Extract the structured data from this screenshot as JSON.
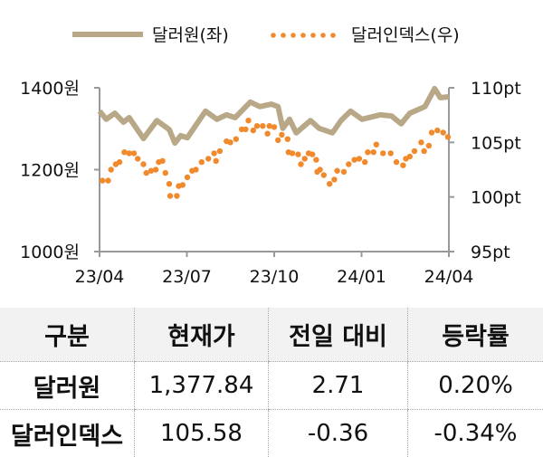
{
  "chart_data": {
    "type": "line",
    "legend_position": "top",
    "grid": false,
    "x_ticks": [
      "23/04",
      "23/07",
      "23/10",
      "24/01",
      "24/04"
    ],
    "x_range": [
      "2023-04-03",
      "2024-04-03"
    ],
    "y_left": {
      "ticks": [
        "1400원",
        "1200원",
        "1000원"
      ],
      "range": [
        1000,
        1400
      ]
    },
    "y_right": {
      "ticks": [
        "110pt",
        "105pt",
        "100pt",
        "95pt"
      ],
      "range": [
        95,
        110
      ]
    },
    "colors": {
      "krw": "#b8a888",
      "dxy": "#f08a2c"
    },
    "series": [
      {
        "name": "달러원(좌)",
        "axis": "left",
        "style": "line",
        "x": [
          "2023-04-03",
          "2023-04-10",
          "2023-04-19",
          "2023-04-28",
          "2023-05-04",
          "2023-05-19",
          "2023-06-02",
          "2023-06-15",
          "2023-06-21",
          "2023-06-27",
          "2023-07-04",
          "2023-07-23",
          "2023-08-04",
          "2023-08-14",
          "2023-08-23",
          "2023-09-08",
          "2023-09-18",
          "2023-09-30",
          "2023-10-07",
          "2023-10-12",
          "2023-10-19",
          "2023-10-26",
          "2023-11-10",
          "2023-11-19",
          "2023-12-03",
          "2023-12-12",
          "2023-12-22",
          "2024-01-03",
          "2024-01-22",
          "2024-02-03",
          "2024-02-13",
          "2024-02-22",
          "2024-03-09",
          "2024-03-19",
          "2024-03-25",
          "2024-04-03"
        ],
        "y": [
          1343,
          1323,
          1338,
          1316,
          1327,
          1276,
          1320,
          1298,
          1265,
          1283,
          1278,
          1343,
          1323,
          1334,
          1327,
          1365,
          1354,
          1360,
          1354,
          1301,
          1323,
          1290,
          1320,
          1301,
          1290,
          1320,
          1343,
          1323,
          1334,
          1331,
          1312,
          1338,
          1354,
          1398,
          1376,
          1378
        ]
      },
      {
        "name": "달러인덱스(우)",
        "axis": "right",
        "style": "dots",
        "x": [
          "2023-04-06",
          "2023-04-12",
          "2023-04-15",
          "2023-04-20",
          "2023-04-24",
          "2023-04-29",
          "2023-05-04",
          "2023-05-09",
          "2023-05-13",
          "2023-05-19",
          "2023-05-22",
          "2023-05-27",
          "2023-06-01",
          "2023-06-04",
          "2023-06-08",
          "2023-06-11",
          "2023-06-15",
          "2023-06-16",
          "2023-06-23",
          "2023-06-25",
          "2023-06-29",
          "2023-07-04",
          "2023-07-09",
          "2023-07-13",
          "2023-07-19",
          "2023-07-26",
          "2023-08-01",
          "2023-08-03",
          "2023-08-07",
          "2023-08-14",
          "2023-08-18",
          "2023-08-24",
          "2023-08-30",
          "2023-09-03",
          "2023-09-06",
          "2023-09-11",
          "2023-09-15",
          "2023-09-21",
          "2023-09-26",
          "2023-09-28",
          "2023-10-03",
          "2023-10-07",
          "2023-10-11",
          "2023-10-17",
          "2023-10-18",
          "2023-10-22",
          "2023-10-28",
          "2023-10-31",
          "2023-11-04",
          "2023-11-08",
          "2023-11-12",
          "2023-11-16",
          "2023-11-17",
          "2023-11-20",
          "2023-11-24",
          "2023-11-30",
          "2023-12-05",
          "2023-12-08",
          "2023-12-15",
          "2023-12-20",
          "2023-12-26",
          "2023-12-31",
          "2024-01-06",
          "2024-01-09",
          "2024-01-15",
          "2024-01-18",
          "2024-01-25",
          "2024-02-02",
          "2024-02-08",
          "2024-02-15",
          "2024-02-18",
          "2024-02-22",
          "2024-02-27",
          "2024-03-05",
          "2024-03-08",
          "2024-03-13",
          "2024-03-16",
          "2024-03-22",
          "2024-03-28",
          "2024-04-02"
        ],
        "y": [
          101.5,
          101.5,
          102.5,
          103.0,
          103.2,
          104.1,
          104.0,
          104.0,
          103.5,
          103.0,
          102.2,
          102.4,
          102.5,
          103.2,
          103.3,
          102.2,
          101.2,
          100.1,
          100.1,
          101.0,
          101.1,
          101.8,
          102.4,
          102.5,
          103.2,
          103.5,
          104.0,
          103.3,
          104.2,
          105.1,
          105.0,
          105.3,
          106.2,
          106.2,
          107.0,
          106.1,
          106.5,
          106.5,
          105.8,
          106.5,
          106.4,
          105.2,
          105.7,
          105.3,
          104.1,
          104.0,
          103.9,
          103.0,
          103.5,
          104.0,
          103.9,
          103.4,
          102.3,
          102.5,
          102.0,
          101.2,
          101.6,
          102.4,
          102.3,
          103.0,
          103.4,
          103.5,
          103.2,
          104.1,
          104.1,
          104.8,
          104.0,
          104.0,
          103.2,
          102.9,
          103.5,
          103.7,
          104.2,
          105.0,
          104.2,
          104.7,
          105.9,
          106.1,
          105.9,
          105.5
        ]
      }
    ]
  },
  "table": {
    "headers": [
      "구분",
      "현재가",
      "전일 대비",
      "등락률"
    ],
    "rows": [
      {
        "name": "달러원",
        "price": "1,377.84",
        "change": "2.71",
        "rate": "0.20%"
      },
      {
        "name": "달러인덱스",
        "price": "105.58",
        "change": "-0.36",
        "rate": "-0.34%"
      }
    ]
  }
}
